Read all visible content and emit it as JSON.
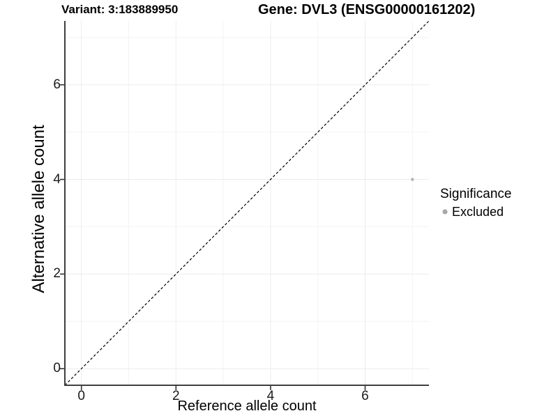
{
  "figure": {
    "title_left": "Variant: 3:183889950",
    "title_right": "Gene: DVL3 (ENSG00000161202)"
  },
  "chart_data": {
    "type": "scatter",
    "title": "Variant: 3:183889950 / Gene: DVL3 (ENSG00000161202)",
    "xlabel": "Reference allele count",
    "ylabel": "Alternative allele count",
    "xlim": [
      -0.35,
      7.35
    ],
    "ylim": [
      -0.35,
      7.35
    ],
    "x_ticks": [
      0,
      2,
      4,
      6
    ],
    "y_ticks": [
      0,
      2,
      4,
      6
    ],
    "x_minor_gridlines": [
      1,
      3,
      5,
      7
    ],
    "y_minor_gridlines": [
      1,
      3,
      5,
      7
    ],
    "grid": true,
    "points": [
      {
        "x": 7,
        "y": 4,
        "series": "Excluded"
      }
    ],
    "reference_line": {
      "kind": "identity",
      "slope": 1,
      "intercept": 0,
      "style": "dashed",
      "color": "#000000"
    },
    "legend": {
      "position": "right",
      "title": "Significance",
      "items": [
        {
          "label": "Excluded",
          "color": "#a8a8a8"
        }
      ]
    },
    "colors": {
      "point": "#b3b3b3",
      "grid_major": "#ececec",
      "grid_minor": "#f3f3f3",
      "axis_line": "#3f3f3f",
      "tick_mark": "#333333",
      "text": "#000000"
    }
  }
}
